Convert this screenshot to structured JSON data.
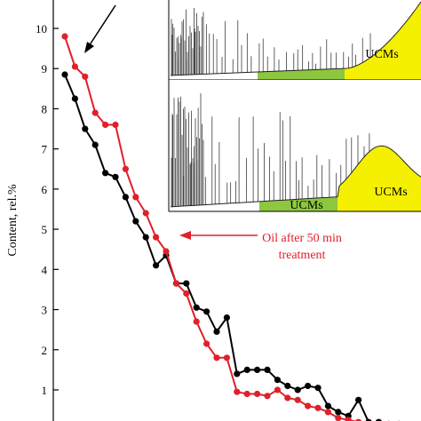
{
  "chart_data": {
    "type": "line",
    "ylabel": "Content, rel.%",
    "yticks": [
      "1",
      "2",
      "3",
      "4",
      "5",
      "6",
      "7",
      "8",
      "9",
      "10"
    ],
    "ylim": [
      0,
      10.6
    ],
    "x": [
      1,
      2,
      3,
      4,
      5,
      6,
      7,
      8,
      9,
      10,
      11,
      12,
      13,
      14,
      15,
      16,
      17,
      18,
      19,
      20,
      21,
      22,
      23,
      24,
      25,
      26,
      27,
      28,
      29,
      30,
      31,
      32,
      33,
      34,
      35
    ],
    "series": [
      {
        "color": "#000000",
        "values": [
          8.85,
          8.25,
          7.5,
          7.1,
          6.4,
          6.3,
          5.8,
          5.2,
          4.8,
          4.1,
          4.35,
          3.65,
          3.65,
          3.05,
          2.95,
          2.45,
          2.8,
          1.4,
          1.5,
          1.5,
          1.5,
          1.25,
          1.1,
          1.0,
          1.1,
          1.05,
          0.6,
          0.45,
          0.35,
          0.75,
          0.2,
          0.2,
          0.15,
          0.15,
          0.1
        ]
      },
      {
        "color": "#e0202a",
        "values": [
          9.8,
          9.05,
          8.8,
          7.9,
          7.6,
          7.6,
          6.5,
          5.8,
          5.4,
          4.8,
          4.45,
          3.65,
          3.4,
          2.7,
          2.15,
          1.8,
          1.8,
          0.95,
          0.9,
          0.9,
          0.85,
          1.0,
          0.8,
          0.75,
          0.6,
          0.55,
          0.45,
          0.3,
          0.25,
          0.2,
          0.15,
          0.1,
          0.1,
          0.05,
          0.05
        ]
      }
    ],
    "annotations": [
      {
        "text": "Oil after 50 min",
        "color": "#e0202a"
      },
      {
        "text": "treatment",
        "color": "#e0202a"
      }
    ]
  },
  "inset": {
    "top_label": "UCMs",
    "bottom_labels": [
      "UCMs",
      "UCMs"
    ],
    "colors": {
      "green": "#8dc63f",
      "yellow": "#f4f000"
    }
  }
}
